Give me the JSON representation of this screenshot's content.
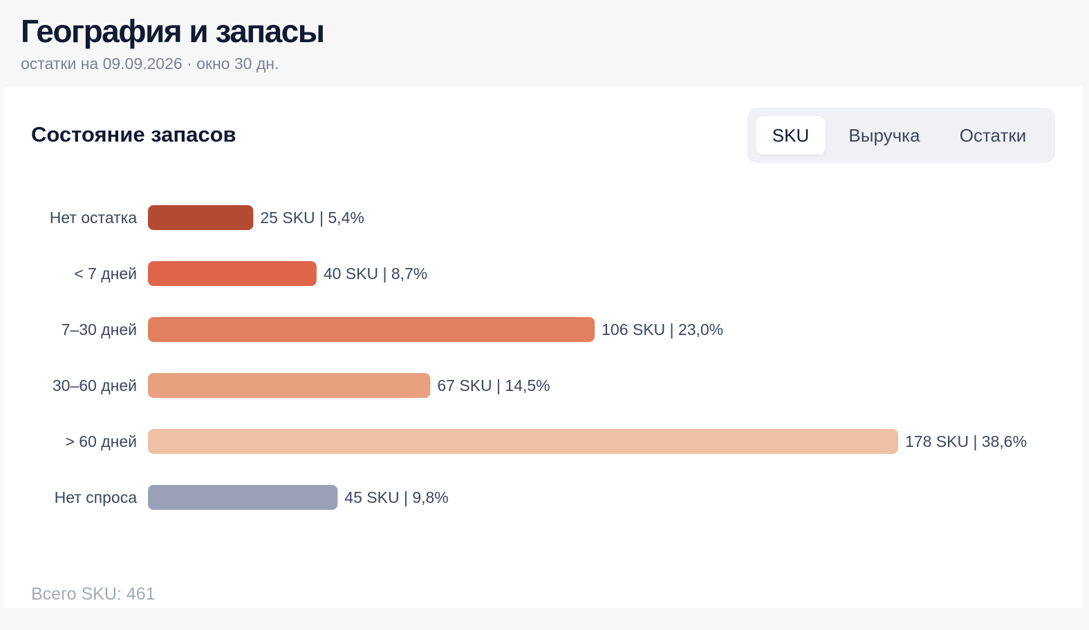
{
  "page": {
    "title": "География и запасы",
    "subtitle": "остатки на 09.09.2026 · окно 30 дн."
  },
  "card": {
    "title": "Состояние запасов",
    "segments": [
      {
        "label": "SKU",
        "active": true
      },
      {
        "label": "Выручка",
        "active": false
      },
      {
        "label": "Остатки",
        "active": false
      }
    ],
    "footer": "Всего SKU: 461"
  },
  "chart_data": {
    "type": "bar",
    "orientation": "horizontal",
    "categories": [
      "Нет остатка",
      "< 7 дней",
      "7–30 дней",
      "30–60 дней",
      "> 60 дней",
      "Нет спроса"
    ],
    "values": [
      25,
      40,
      106,
      67,
      178,
      45
    ],
    "value_labels": [
      "25 SKU | 5,4%",
      "40 SKU | 8,7%",
      "106 SKU | 23,0%",
      "67 SKU | 14,5%",
      "178 SKU | 38,6%",
      "45 SKU | 9,8%"
    ],
    "colors": [
      "#b54a32",
      "#de644a",
      "#e0805e",
      "#e8a07e",
      "#eec0a6",
      "#9aa0b6"
    ],
    "xlim": [
      0,
      178
    ],
    "grid": false,
    "legend": "none"
  }
}
